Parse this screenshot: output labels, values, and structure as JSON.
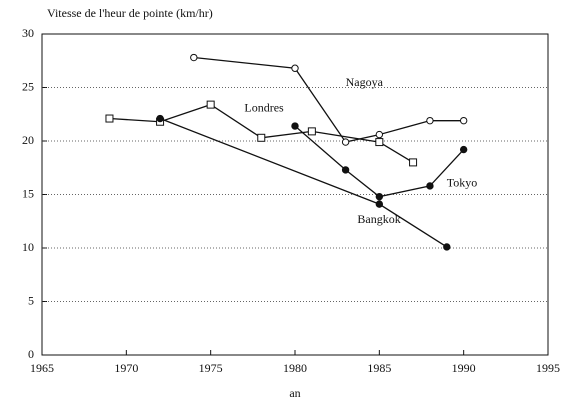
{
  "chart_data": {
    "type": "line",
    "y_label": "Vitesse de l'heur de pointe (km/hr)",
    "x_label": "an",
    "xlim": [
      1965,
      1995
    ],
    "xticks": [
      1965,
      1970,
      1975,
      1980,
      1985,
      1990,
      1995
    ],
    "ylim": [
      0,
      30
    ],
    "yticks": [
      0,
      5,
      10,
      15,
      20,
      25,
      30
    ],
    "grid": true,
    "series": [
      {
        "name": "Nagoya",
        "color": "#111111",
        "marker": "circle-open",
        "x": [
          1974,
          1980,
          1983,
          1985,
          1988,
          1990
        ],
        "values": [
          27.8,
          26.8,
          19.9,
          20.6,
          21.9,
          21.9
        ]
      },
      {
        "name": "Londres",
        "color": "#111111",
        "marker": "square-open",
        "x": [
          1969,
          1972,
          1975,
          1978,
          1981,
          1985,
          1987
        ],
        "values": [
          22.1,
          21.8,
          23.4,
          20.3,
          20.9,
          19.9,
          18.0
        ]
      },
      {
        "name": "Tokyo",
        "color": "#111111",
        "marker": "circle-filled",
        "x": [
          1980,
          1983,
          1985,
          1988,
          1990
        ],
        "values": [
          21.4,
          17.3,
          14.8,
          15.8,
          19.2
        ]
      },
      {
        "name": "Bangkok",
        "color": "#111111",
        "marker": "circle-filled",
        "x": [
          1972,
          1985,
          1989
        ],
        "values": [
          22.1,
          14.1,
          10.1
        ]
      }
    ]
  }
}
